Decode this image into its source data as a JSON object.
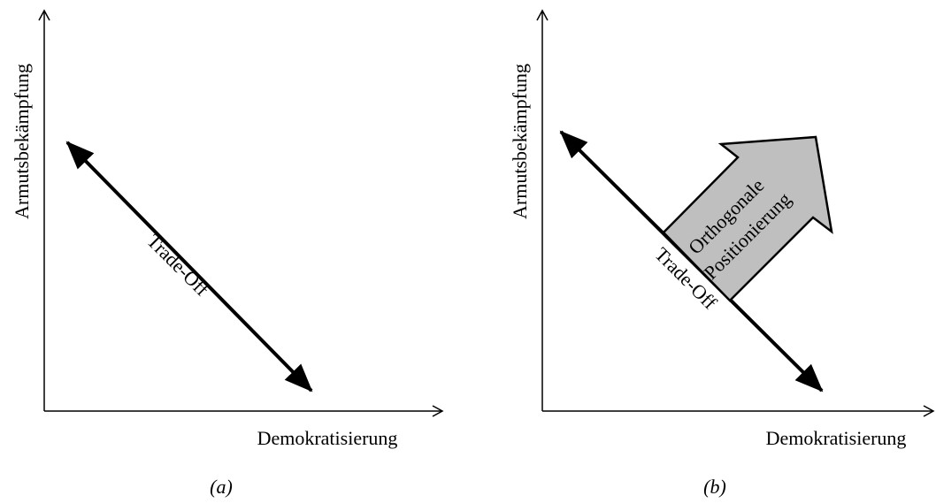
{
  "panels": [
    {
      "y_label": "Armutsbekämpfung",
      "x_label": "Demokratisierung",
      "arrow_label": "Trade-Off",
      "caption": "(a)"
    },
    {
      "y_label": "Armutsbekämpfung",
      "x_label": "Demokratisierung",
      "arrow_label": "Trade-Off",
      "orthogonal_label": [
        "Orthogonale",
        "Positionierung"
      ],
      "caption": "(b)"
    }
  ]
}
